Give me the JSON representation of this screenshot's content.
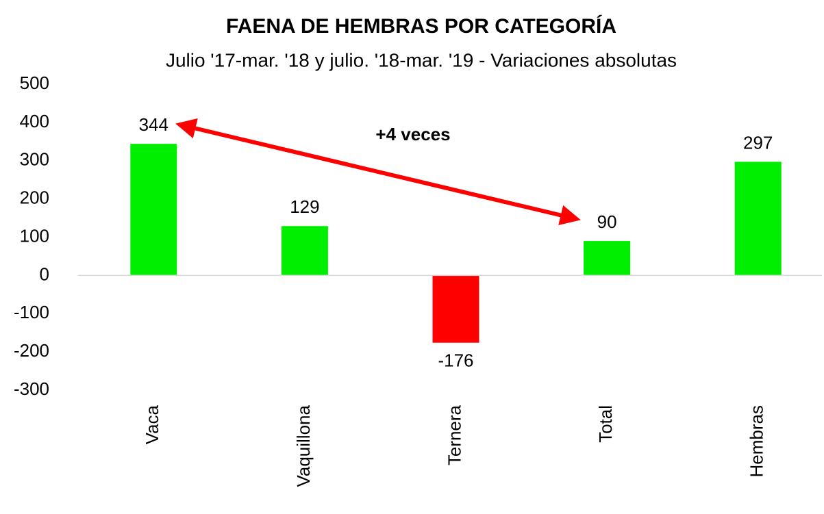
{
  "chart_data": {
    "type": "bar",
    "title": "FAENA DE HEMBRAS POR CATEGORÍA",
    "subtitle": "Julio '17-mar. '18 y julio. '18-mar. '19 - Variaciones absolutas",
    "categories": [
      "Vaca",
      "Vaquillona",
      "Ternera",
      "Total",
      "Hembras"
    ],
    "values": [
      344,
      129,
      -176,
      90,
      297
    ],
    "positive_color": "#00ee00",
    "negative_color": "#ff0000",
    "ylim": [
      -300,
      500
    ],
    "yticks": [
      -300,
      -200,
      -100,
      0,
      100,
      200,
      300,
      400,
      500
    ],
    "grid": false,
    "annotation": "+4 veces"
  }
}
